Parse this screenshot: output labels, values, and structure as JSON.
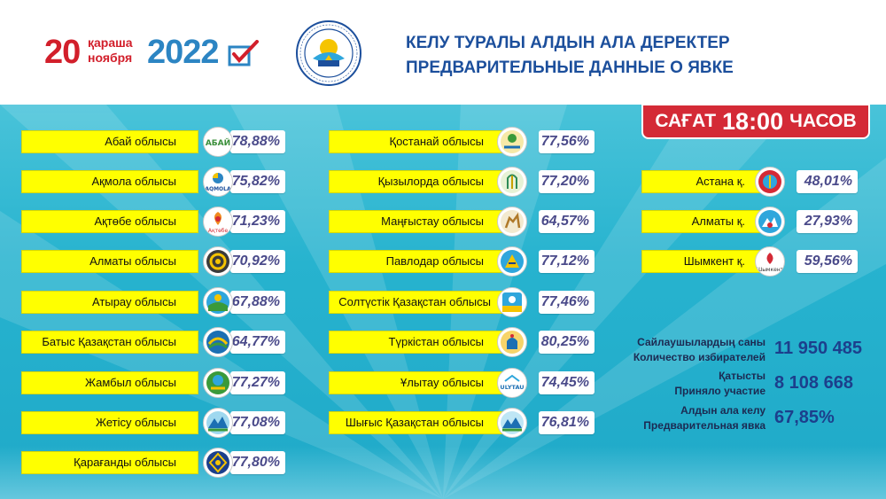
{
  "header": {
    "day": "20",
    "month_kz": "қараша",
    "month_ru": "ноября",
    "year": "2022",
    "title_kz": "КЕЛУ ТУРАЛЫ АЛДЫН АЛА ДЕРЕКТЕР",
    "title_ru": "ПРЕДВАРИТЕЛЬНЫЕ ДАННЫЕ О ЯВКЕ",
    "emblem_icon": "central-election-commission-emblem"
  },
  "time_badge": {
    "kz": "САҒАТ",
    "time": "18:00",
    "ru": "ЧАСОВ"
  },
  "col1": [
    {
      "name": "Абай облысы",
      "pct": "78,88%"
    },
    {
      "name": "Ақмола облысы",
      "pct": "75,82%"
    },
    {
      "name": "Ақтөбе облысы",
      "pct": "71,23%"
    },
    {
      "name": "Алматы облысы",
      "pct": "70,92%"
    },
    {
      "name": "Атырау облысы",
      "pct": "67,88%"
    },
    {
      "name": "Батыс Қазақстан облысы",
      "pct": "64,77%"
    },
    {
      "name": "Жамбыл облысы",
      "pct": "77,27%"
    },
    {
      "name": "Жетісу облысы",
      "pct": "77,08%"
    },
    {
      "name": "Қарағанды облысы",
      "pct": "77,80%"
    }
  ],
  "col2": [
    {
      "name": "Қостанай облысы",
      "pct": "77,56%"
    },
    {
      "name": "Қызылорда облысы",
      "pct": "77,20%"
    },
    {
      "name": "Маңғыстау облысы",
      "pct": "64,57%"
    },
    {
      "name": "Павлодар облысы",
      "pct": "77,12%"
    },
    {
      "name": "Солтүстік Қазақстан облысы",
      "pct": "77,46%"
    },
    {
      "name": "Түркістан облысы",
      "pct": "80,25%"
    },
    {
      "name": "Ұлытау облысы",
      "pct": "74,45%"
    },
    {
      "name": "Шығыс Қазақстан облысы",
      "pct": "76,81%"
    }
  ],
  "col3": [
    {
      "name": "Астана қ.",
      "pct": "48,01%"
    },
    {
      "name": "Алматы қ.",
      "pct": "27,93%"
    },
    {
      "name": "Шымкент қ.",
      "pct": "59,56%"
    }
  ],
  "logos": {
    "abai": "АБАЙ",
    "akmola": "AQMOLA",
    "aktobe": "Ақтөбе",
    "ulytau": "ULYTAU",
    "shymkent": "Шымкент"
  },
  "stats": [
    {
      "label_kz": "Сайлаушылардың саны",
      "label_ru": "Количество избирателей",
      "value": "11 950 485"
    },
    {
      "label_kz": "Қатысты",
      "label_ru": "Приняло участие",
      "value": "8 108 668"
    },
    {
      "label_kz": "Алдын ала келу",
      "label_ru": "Предварительная явка",
      "value": "67,85%"
    }
  ],
  "colors": {
    "yellow": "#ffff00",
    "red": "#d42a36",
    "blue": "#1c4f9c",
    "teal": "#27b3cf"
  }
}
